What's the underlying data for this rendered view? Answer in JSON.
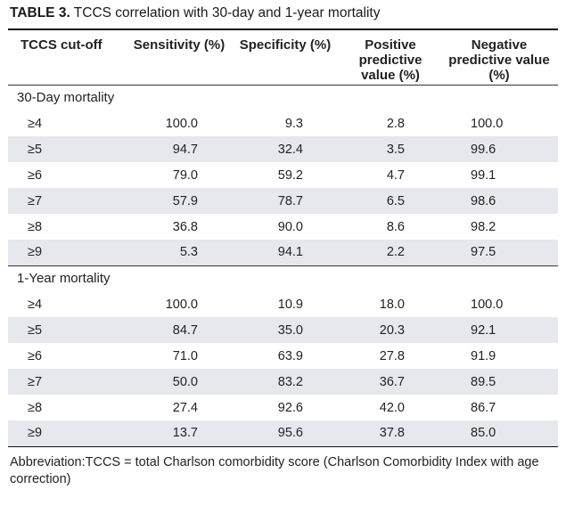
{
  "caption": {
    "label": "TABLE 3.",
    "text": " TCCS correlation with 30-day and 1-year mortality"
  },
  "headers": [
    "TCCS cut-off",
    "Sensitivity (%)",
    "Specificity (%)",
    "Positive predictive value (%)",
    "Negative predictive value (%)"
  ],
  "sections": [
    {
      "title": "30-Day mortality",
      "rows": [
        [
          "≥4",
          "100.0",
          "9.3",
          "2.8",
          "100.0"
        ],
        [
          "≥5",
          "94.7",
          "32.4",
          "3.5",
          "99.6"
        ],
        [
          "≥6",
          "79.0",
          "59.2",
          "4.7",
          "99.1"
        ],
        [
          "≥7",
          "57.9",
          "78.7",
          "6.5",
          "98.6"
        ],
        [
          "≥8",
          "36.8",
          "90.0",
          "8.6",
          "98.2"
        ],
        [
          "≥9",
          "5.3",
          "94.1",
          "2.2",
          "97.5"
        ]
      ]
    },
    {
      "title": "1-Year mortality",
      "rows": [
        [
          "≥4",
          "100.0",
          "10.9",
          "18.0",
          "100.0"
        ],
        [
          "≥5",
          "84.7",
          "35.0",
          "20.3",
          "92.1"
        ],
        [
          "≥6",
          "71.0",
          "63.9",
          "27.8",
          "91.9"
        ],
        [
          "≥7",
          "50.0",
          "83.2",
          "36.7",
          "89.5"
        ],
        [
          "≥8",
          "27.4",
          "92.6",
          "42.0",
          "86.7"
        ],
        [
          "≥9",
          "13.7",
          "95.6",
          "37.8",
          "85.0"
        ]
      ]
    }
  ],
  "footnote": {
    "text": "Abbreviation:TCCS = total Charlson comorbidity score (Charlson Comorbidity Index with age correction)"
  },
  "colors": {
    "shade": "#e6e8ee",
    "rule": "#111111"
  }
}
